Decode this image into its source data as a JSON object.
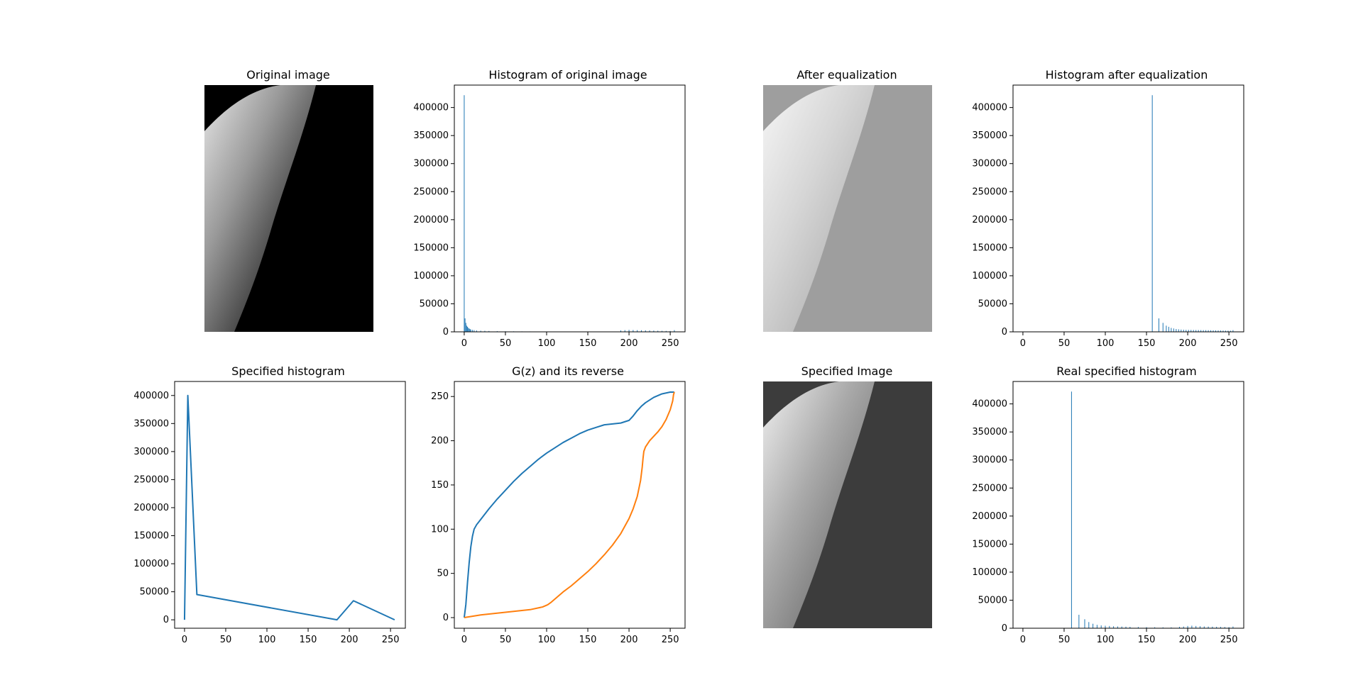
{
  "colors": {
    "series1": "#1f77b4",
    "series2": "#ff7f0e",
    "axes": "#000000"
  },
  "images": [
    {
      "title": "Original image",
      "tone": "original"
    },
    {
      "title": "After equalization",
      "tone": "equalized"
    },
    {
      "title": "Specified Image",
      "tone": "specified"
    }
  ],
  "chart_data": [
    {
      "type": "bar",
      "title": "Histogram of original image",
      "xlim": [
        -12,
        268
      ],
      "ylim": [
        0,
        440000
      ],
      "xticks": [
        0,
        50,
        100,
        150,
        200,
        250
      ],
      "yticks": [
        0,
        50000,
        100000,
        150000,
        200000,
        250000,
        300000,
        350000,
        400000
      ],
      "x": [
        0,
        1,
        2,
        3,
        4,
        5,
        6,
        7,
        8,
        10,
        12,
        15,
        20,
        25,
        30,
        40,
        50,
        60,
        70,
        80,
        100,
        130,
        190,
        195,
        200,
        205,
        210,
        215,
        220,
        225,
        230,
        235,
        240,
        245,
        250,
        255
      ],
      "values": [
        422000,
        24000,
        16000,
        11000,
        9000,
        7000,
        6000,
        5000,
        4000,
        3500,
        3000,
        2500,
        2000,
        1800,
        1500,
        1200,
        1000,
        900,
        800,
        700,
        500,
        300,
        2500,
        3000,
        3500,
        3200,
        3000,
        2800,
        2600,
        2400,
        2200,
        2000,
        1800,
        1600,
        1500,
        3000
      ]
    },
    {
      "type": "bar",
      "title": "Histogram after equalization",
      "xlim": [
        -12,
        268
      ],
      "ylim": [
        0,
        440000
      ],
      "xticks": [
        0,
        50,
        100,
        150,
        200,
        250
      ],
      "yticks": [
        0,
        50000,
        100000,
        150000,
        200000,
        250000,
        300000,
        350000,
        400000
      ],
      "x": [
        157,
        165,
        170,
        174,
        177,
        180,
        183,
        186,
        189,
        192,
        195,
        198,
        201,
        204,
        207,
        210,
        213,
        216,
        219,
        222,
        225,
        228,
        231,
        234,
        237,
        240,
        243,
        246,
        249,
        252,
        255
      ],
      "values": [
        422000,
        24000,
        16000,
        11000,
        9000,
        7000,
        6000,
        5000,
        4500,
        4000,
        3800,
        3500,
        3500,
        3400,
        3300,
        3200,
        3200,
        3100,
        3000,
        3000,
        2900,
        2800,
        2700,
        2600,
        2500,
        2400,
        2300,
        2200,
        2100,
        2000,
        3000
      ]
    },
    {
      "type": "line",
      "title": "Specified histogram",
      "xlim": [
        -12,
        268
      ],
      "ylim": [
        -15000,
        425000
      ],
      "xticks": [
        0,
        50,
        100,
        150,
        200,
        250
      ],
      "yticks": [
        0,
        50000,
        100000,
        150000,
        200000,
        250000,
        300000,
        350000,
        400000
      ],
      "series": [
        {
          "x": [
            0,
            4,
            15,
            185,
            205,
            255
          ],
          "values": [
            0,
            400000,
            45000,
            0,
            34000,
            0
          ]
        }
      ]
    },
    {
      "type": "line",
      "title": "G(z) and its reverse",
      "xlim": [
        -12,
        268
      ],
      "ylim": [
        -12,
        267
      ],
      "xticks": [
        0,
        50,
        100,
        150,
        200,
        250
      ],
      "yticks": [
        0,
        50,
        100,
        150,
        200,
        250
      ],
      "series": [
        {
          "x": [
            0,
            2,
            4,
            6,
            8,
            10,
            12,
            15,
            20,
            30,
            40,
            50,
            60,
            70,
            80,
            90,
            100,
            110,
            120,
            130,
            140,
            150,
            160,
            170,
            180,
            190,
            200,
            205,
            210,
            215,
            220,
            230,
            240,
            250,
            255
          ],
          "values": [
            0,
            15,
            40,
            62,
            80,
            92,
            100,
            105,
            111,
            123,
            134,
            144,
            154,
            163,
            171,
            179,
            186,
            192,
            198,
            203,
            208,
            212,
            215,
            218,
            219,
            220,
            223,
            228,
            234,
            239,
            243,
            249,
            253,
            255,
            255
          ]
        },
        {
          "x": [
            0,
            20,
            40,
            60,
            80,
            95,
            100,
            102,
            105,
            110,
            120,
            130,
            140,
            150,
            160,
            170,
            180,
            190,
            200,
            205,
            210,
            214,
            216,
            217,
            218,
            220,
            225,
            230,
            235,
            240,
            245,
            250,
            253,
            254,
            255
          ],
          "values": [
            0,
            3,
            5,
            7,
            9,
            12,
            14,
            15,
            17,
            21,
            29,
            36,
            44,
            52,
            61,
            71,
            82,
            95,
            112,
            123,
            137,
            155,
            170,
            180,
            188,
            193,
            200,
            205,
            210,
            216,
            224,
            235,
            245,
            252,
            255
          ]
        }
      ]
    },
    {
      "type": "bar",
      "title": "Real specified histogram",
      "xlim": [
        -12,
        268
      ],
      "ylim": [
        0,
        440000
      ],
      "xticks": [
        0,
        50,
        100,
        150,
        200,
        250
      ],
      "yticks": [
        0,
        50000,
        100000,
        150000,
        200000,
        250000,
        300000,
        350000,
        400000
      ],
      "x": [
        59,
        68,
        75,
        80,
        85,
        90,
        95,
        100,
        105,
        110,
        115,
        120,
        125,
        130,
        140,
        150,
        160,
        170,
        180,
        190,
        195,
        200,
        205,
        210,
        215,
        220,
        225,
        230,
        235,
        240,
        245,
        250,
        255
      ],
      "values": [
        422000,
        24000,
        16000,
        11000,
        8000,
        6000,
        5000,
        4500,
        4000,
        3500,
        3200,
        3000,
        2800,
        2500,
        2200,
        2000,
        1800,
        1600,
        1500,
        2500,
        3000,
        4000,
        4500,
        4000,
        3500,
        3200,
        3000,
        2800,
        2600,
        2400,
        2200,
        2000,
        3000
      ]
    }
  ]
}
